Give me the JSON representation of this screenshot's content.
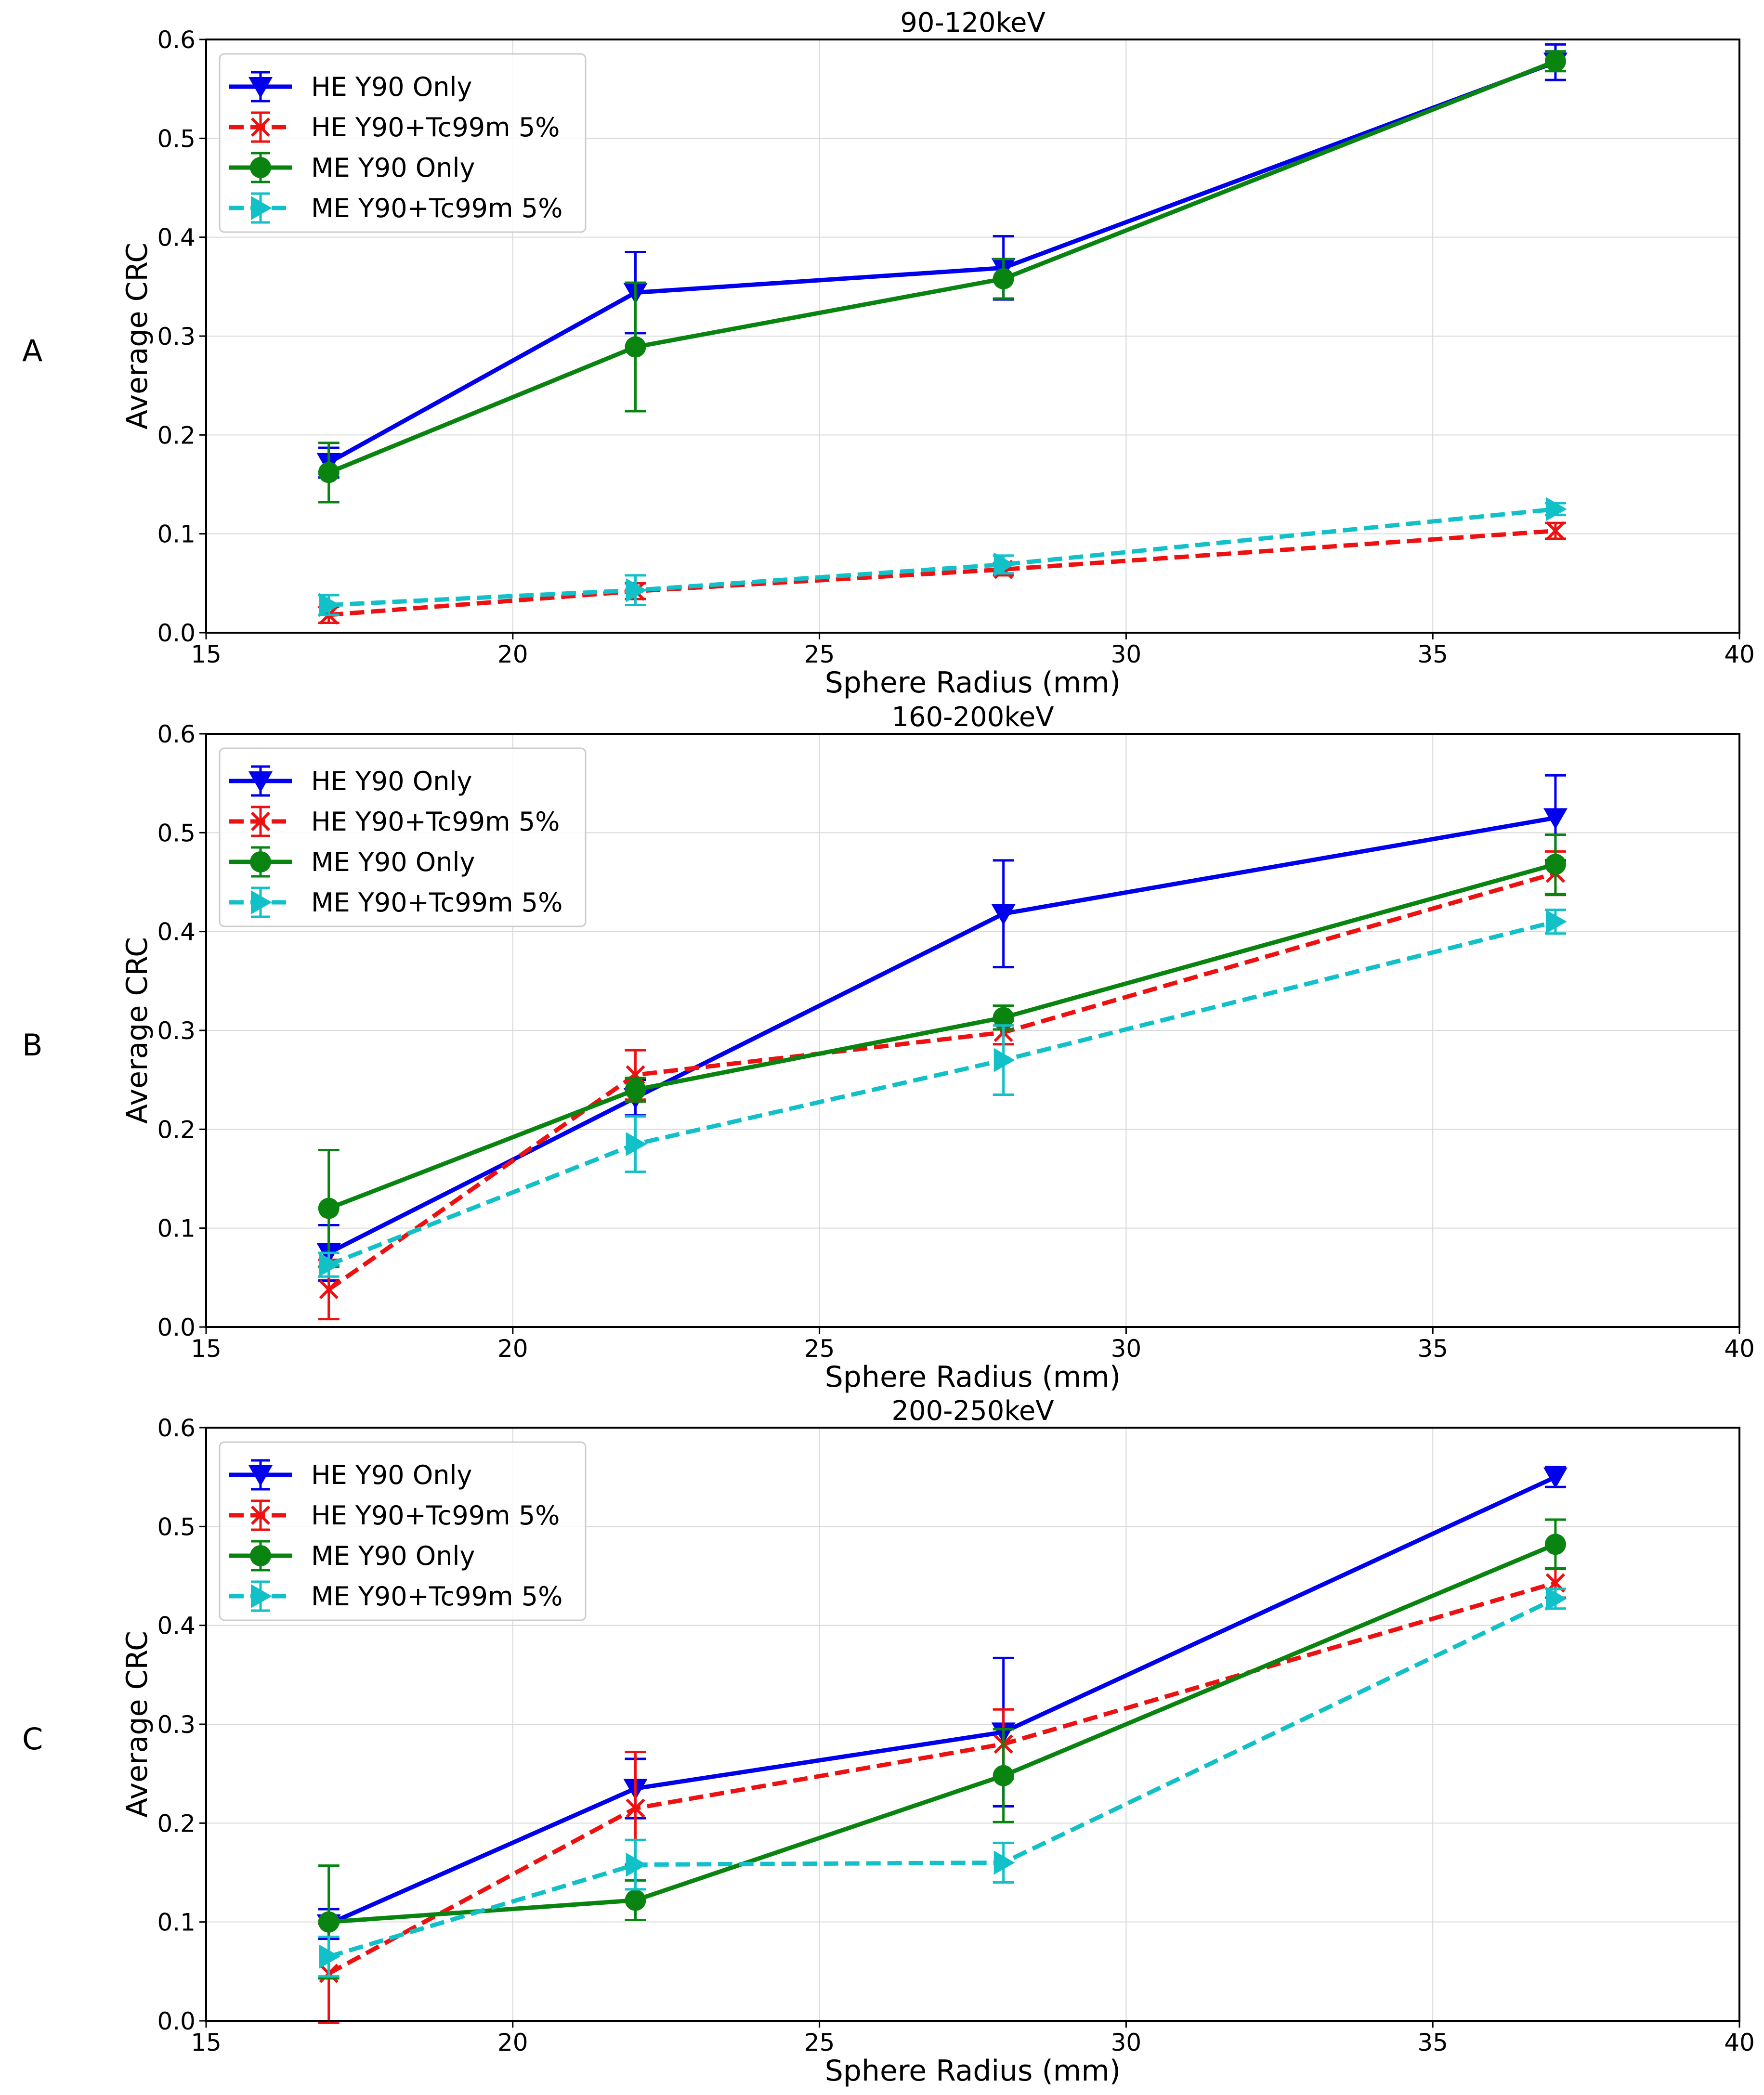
{
  "chart_data": [
    {
      "panel_label": "A",
      "type": "line",
      "title": "90-120keV",
      "xlabel": "Sphere Radius (mm)",
      "ylabel": "Average CRC",
      "xlim": [
        15,
        40
      ],
      "ylim": [
        0.0,
        0.6
      ],
      "x_ticks": [
        "15",
        "20",
        "25",
        "30",
        "35",
        "40"
      ],
      "y_ticks": [
        "0.0",
        "0.1",
        "0.2",
        "0.3",
        "0.4",
        "0.5",
        "0.6"
      ],
      "grid": true,
      "legend_position": "top-left",
      "x": [
        17,
        22,
        28,
        37
      ],
      "series": [
        {
          "name": "HE Y90 Only",
          "values": [
            0.172,
            0.344,
            0.369,
            0.577
          ],
          "errors": [
            0.015,
            0.041,
            0.032,
            0.018
          ]
        },
        {
          "name": "HE Y90+Tc99m 5%",
          "values": [
            0.018,
            0.042,
            0.064,
            0.103
          ],
          "errors": [
            0.008,
            0.008,
            0.006,
            0.008
          ]
        },
        {
          "name": "ME Y90 Only",
          "values": [
            0.162,
            0.289,
            0.358,
            0.578
          ],
          "errors": [
            0.03,
            0.065,
            0.02,
            0.01
          ]
        },
        {
          "name": "ME Y90+Tc99m 5%",
          "values": [
            0.028,
            0.043,
            0.069,
            0.125
          ],
          "errors": [
            0.01,
            0.015,
            0.009,
            0.006
          ]
        }
      ]
    },
    {
      "panel_label": "B",
      "type": "line",
      "title": "160-200keV",
      "xlabel": "Sphere Radius (mm)",
      "ylabel": "Average CRC",
      "xlim": [
        15,
        40
      ],
      "ylim": [
        0.0,
        0.6
      ],
      "x_ticks": [
        "15",
        "20",
        "25",
        "30",
        "35",
        "40"
      ],
      "y_ticks": [
        "0.0",
        "0.1",
        "0.2",
        "0.3",
        "0.4",
        "0.5",
        "0.6"
      ],
      "grid": true,
      "legend_position": "top-left",
      "x": [
        17,
        22,
        28,
        37
      ],
      "series": [
        {
          "name": "HE Y90 Only",
          "values": [
            0.075,
            0.232,
            0.418,
            0.515
          ],
          "errors": [
            0.028,
            0.018,
            0.054,
            0.043
          ]
        },
        {
          "name": "HE Y90+Tc99m 5%",
          "values": [
            0.038,
            0.255,
            0.298,
            0.459
          ],
          "errors": [
            0.03,
            0.025,
            0.012,
            0.022
          ]
        },
        {
          "name": "ME Y90 Only",
          "values": [
            0.12,
            0.24,
            0.313,
            0.468
          ],
          "errors": [
            0.059,
            0.012,
            0.012,
            0.03
          ]
        },
        {
          "name": "ME Y90+Tc99m 5%",
          "values": [
            0.063,
            0.185,
            0.27,
            0.41
          ],
          "errors": [
            0.012,
            0.028,
            0.035,
            0.012
          ]
        }
      ]
    },
    {
      "panel_label": "C",
      "type": "line",
      "title": "200-250keV",
      "xlabel": "Sphere Radius (mm)",
      "ylabel": "Average CRC",
      "xlim": [
        15,
        40
      ],
      "ylim": [
        0.0,
        0.6
      ],
      "x_ticks": [
        "15",
        "20",
        "25",
        "30",
        "35",
        "40"
      ],
      "y_ticks": [
        "0.0",
        "0.1",
        "0.2",
        "0.3",
        "0.4",
        "0.5",
        "0.6"
      ],
      "grid": true,
      "legend_position": "top-left",
      "x": [
        17,
        22,
        28,
        37
      ],
      "series": [
        {
          "name": "HE Y90 Only",
          "values": [
            0.098,
            0.235,
            0.292,
            0.55
          ],
          "errors": [
            0.015,
            0.03,
            0.075,
            0.01
          ]
        },
        {
          "name": "HE Y90+Tc99m 5%",
          "values": [
            0.048,
            0.215,
            0.28,
            0.443
          ],
          "errors": [
            0.05,
            0.057,
            0.035,
            0.015
          ]
        },
        {
          "name": "ME Y90 Only",
          "values": [
            0.1,
            0.122,
            0.248,
            0.482
          ],
          "errors": [
            0.057,
            0.02,
            0.047,
            0.025
          ]
        },
        {
          "name": "ME Y90+Tc99m 5%",
          "values": [
            0.065,
            0.158,
            0.16,
            0.427
          ],
          "errors": [
            0.02,
            0.025,
            0.02,
            0.01
          ]
        }
      ]
    }
  ],
  "series_styles": [
    {
      "color": "#0000ee",
      "dash": "solid",
      "marker": "triangle-down"
    },
    {
      "color": "#ee1111",
      "dash": "dashed",
      "marker": "x"
    },
    {
      "color": "#0a8410",
      "dash": "solid",
      "marker": "circle"
    },
    {
      "color": "#12c0c8",
      "dash": "dashed",
      "marker": "triangle-right"
    }
  ]
}
